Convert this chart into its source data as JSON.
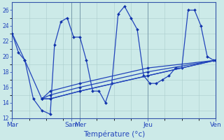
{
  "title": "Température (°c)",
  "x_ticks_labels": [
    "Mar",
    "Sam",
    "Mer",
    "Jeu",
    "Ven"
  ],
  "x_ticks_pos": [
    0,
    28,
    32,
    64,
    96
  ],
  "y_min": 12,
  "y_max": 27,
  "y_ticks": [
    12,
    14,
    16,
    18,
    20,
    22,
    24,
    26
  ],
  "background_color": "#cceae8",
  "line_color": "#2244bb",
  "marker_color": "#1133aa",
  "lw": 0.9,
  "ms": 2.0,
  "series_main_x": [
    0,
    3,
    6,
    10,
    14,
    18,
    20,
    23,
    26,
    29,
    32,
    35,
    38,
    41,
    44,
    47,
    50,
    53,
    56,
    59,
    62,
    65,
    68,
    71,
    74,
    77,
    80,
    83,
    86,
    89,
    92,
    95,
    96
  ],
  "series_main_y": [
    23,
    20.5,
    19.5,
    14.5,
    13.0,
    12.5,
    21.5,
    24.5,
    25.0,
    22.5,
    22.5,
    19.5,
    15.5,
    15.5,
    14.0,
    16.5,
    25.5,
    26.5,
    25.0,
    23.5,
    17.5,
    16.5,
    16.5,
    17.0,
    17.5,
    18.5,
    18.5,
    26.0,
    26.0,
    24.0,
    20.0,
    19.5,
    19.5
  ],
  "trend1_x": [
    0,
    6,
    14,
    18,
    32,
    64,
    96
  ],
  "trend1_y": [
    23.0,
    19.5,
    14.5,
    14.5,
    15.5,
    17.5,
    19.5
  ],
  "trend2_x": [
    14,
    18,
    32,
    64,
    96
  ],
  "trend2_y": [
    14.5,
    14.5,
    15.5,
    17.5,
    19.5
  ],
  "trend3_x": [
    14,
    18,
    32,
    64,
    96
  ],
  "trend3_y": [
    14.5,
    15.0,
    16.0,
    18.0,
    19.5
  ],
  "trend4_x": [
    14,
    18,
    32,
    64,
    96
  ],
  "trend4_y": [
    14.5,
    15.5,
    16.5,
    18.5,
    19.5
  ],
  "vlines_x": [
    0,
    28,
    32,
    64,
    96
  ]
}
